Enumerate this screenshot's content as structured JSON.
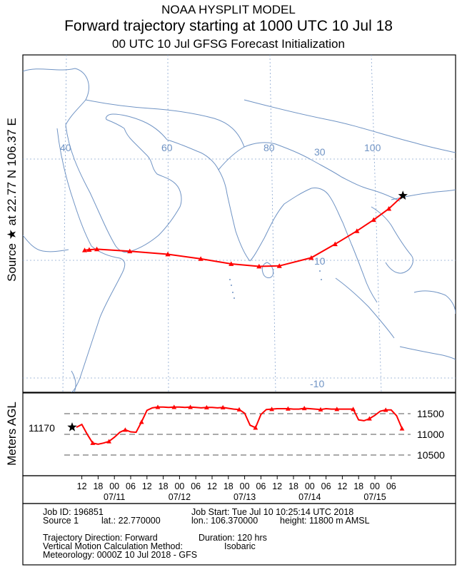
{
  "header": {
    "line1": "NOAA HYSPLIT MODEL",
    "line2": "Forward trajectory starting at 1000 UTC 10 Jul 18",
    "line3": "00 UTC 10 Jul    GFSG  Forecast Initialization"
  },
  "map": {
    "source_label": "Source ★  at   22.77 N   106.37 E",
    "lon_labels": [
      "40",
      "60",
      "80",
      "100"
    ],
    "lat_labels": [
      "30",
      "10",
      "-10"
    ]
  },
  "chart_data": {
    "type": "line",
    "title": "Forward trajectory starting at 1000 UTC 10 Jul 18",
    "ylabel": "Meters AGL",
    "start_height_label": "11170",
    "y_ticks": [
      10500,
      11000,
      11500
    ],
    "ylim": [
      10300,
      11800
    ],
    "x_hour_labels": [
      "12",
      "18",
      "00",
      "06",
      "12",
      "18",
      "00",
      "06",
      "12",
      "18",
      "00",
      "06",
      "12",
      "18",
      "00",
      "06",
      "12",
      "18",
      "00",
      "06"
    ],
    "x_date_labels": [
      "07/11",
      "07/12",
      "07/13",
      "07/14",
      "07/15"
    ],
    "hours_since_start": [
      0,
      2,
      4,
      6,
      8,
      10,
      12,
      14,
      16,
      18,
      20,
      22,
      24,
      26,
      28,
      30,
      32,
      34,
      36,
      38,
      40,
      42,
      44,
      46,
      48,
      50,
      52,
      54,
      56,
      58,
      60,
      62,
      64,
      66,
      68,
      70,
      72,
      74,
      76,
      78,
      80,
      82,
      84,
      86,
      88,
      90,
      92,
      94,
      96,
      98,
      100,
      102,
      104,
      106,
      108,
      110,
      112,
      114,
      116,
      118,
      120
    ],
    "height": [
      11170,
      11240,
      11000,
      10790,
      10760,
      10790,
      10830,
      10930,
      11050,
      11110,
      11060,
      11050,
      11300,
      11580,
      11640,
      11660,
      11660,
      11650,
      11660,
      11660,
      11650,
      11660,
      11650,
      11640,
      11650,
      11650,
      11640,
      11650,
      11630,
      11610,
      11600,
      11510,
      11220,
      11160,
      11480,
      11600,
      11610,
      11620,
      11620,
      11620,
      11610,
      11610,
      11630,
      11620,
      11610,
      11600,
      11620,
      11610,
      11610,
      11610,
      11610,
      11610,
      11350,
      11330,
      11380,
      11460,
      11560,
      11590,
      11590,
      11450,
      11140
    ],
    "track": [
      {
        "lon": 106.37,
        "lat": 22.77
      },
      {
        "lon": 103.6,
        "lat": 20.2
      },
      {
        "lon": 100.6,
        "lat": 18.0
      },
      {
        "lon": 97.3,
        "lat": 15.8
      },
      {
        "lon": 93.0,
        "lat": 13.2
      },
      {
        "lon": 88.3,
        "lat": 10.5
      },
      {
        "lon": 82.0,
        "lat": 8.9
      },
      {
        "lon": 78.0,
        "lat": 8.8
      },
      {
        "lon": 72.5,
        "lat": 9.3
      },
      {
        "lon": 66.5,
        "lat": 10.3
      },
      {
        "lon": 60.0,
        "lat": 11.2
      },
      {
        "lon": 52.5,
        "lat": 11.8
      },
      {
        "lon": 46.0,
        "lat": 12.2
      },
      {
        "lon": 44.5,
        "lat": 12.1
      },
      {
        "lon": 43.6,
        "lat": 12.0
      }
    ]
  },
  "footer": {
    "job_id": "Job ID: 196851",
    "job_start": "Job Start: Tue Jul 10 10:25:14 UTC 2018",
    "source": "Source 1",
    "lat": "lat.: 22.770000",
    "lon": "lon.: 106.370000",
    "height": "height: 11800 m AMSL",
    "direction": "Trajectory Direction: Forward",
    "duration": "Duration: 120 hrs",
    "vertical_label": "Vertical Motion Calculation Method:",
    "vertical_value": "Isobaric",
    "meteorology": "Meteorology: 0000Z 10 Jul 2018 - GFS"
  },
  "colors": {
    "trajectory": "#ff0000",
    "map": "#6f93c4",
    "grid": "#8aa6cf"
  }
}
